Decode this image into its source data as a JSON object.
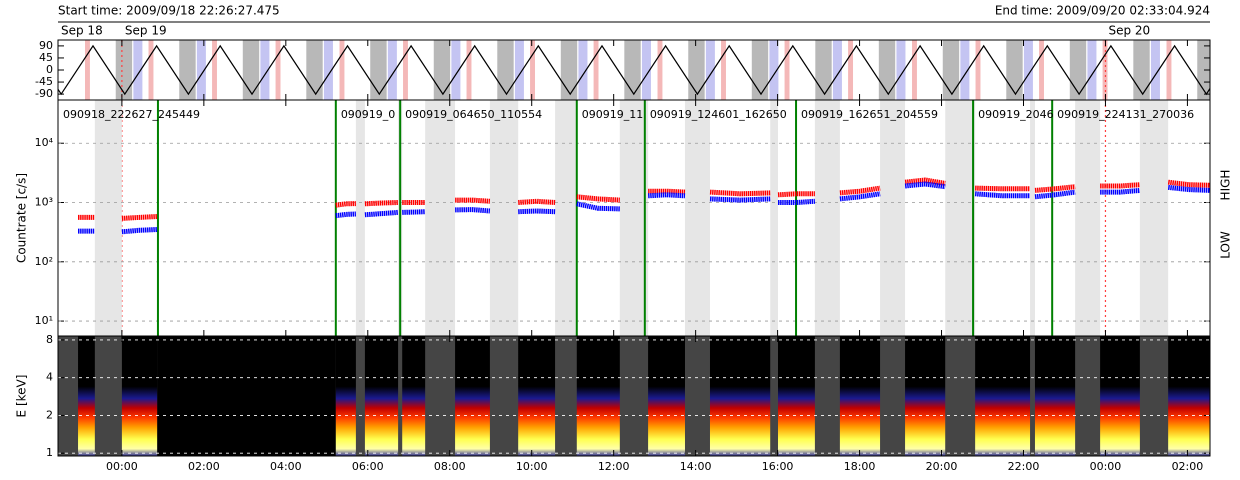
{
  "header": {
    "start": "Start time: 2009/09/18 22:26:27.475",
    "end": "End time: 2009/09/20 02:33:04.924"
  },
  "chart_data": [
    {
      "type": "line",
      "xlim": [
        22.441,
        50.551
      ],
      "ylim": [
        -112,
        112
      ],
      "yticks": [
        90,
        45,
        0,
        -45,
        -90
      ],
      "days": [
        {
          "value": 0,
          "label": "Sep 18"
        },
        {
          "value": 24,
          "label": "Sep 19"
        },
        {
          "value": 48,
          "label": "Sep 20"
        }
      ],
      "day_line_color": "#ff4040",
      "x": [
        22.441,
        22.519,
        23.295,
        24.071,
        24.847,
        25.623,
        26.4,
        27.176,
        27.952,
        28.728,
        29.505,
        30.281,
        31.057,
        31.833,
        32.609,
        33.386,
        34.162,
        34.938,
        35.714,
        36.49,
        37.267,
        38.043,
        38.819,
        39.595,
        40.371,
        41.148,
        41.924,
        42.7,
        43.476,
        44.252,
        45.029,
        45.805,
        46.581,
        47.357,
        48.133,
        48.91,
        49.686,
        50.462,
        50.551
      ],
      "series": [
        {
          "color": "#000000",
          "values": [
            -72,
            -90,
            90,
            -90,
            90,
            -90,
            90,
            -90,
            90,
            -90,
            90,
            -90,
            90,
            -90,
            90,
            -90,
            90,
            -90,
            90,
            -90,
            90,
            -90,
            90,
            -90,
            90,
            -90,
            90,
            -90,
            90,
            -90,
            90,
            -90,
            90,
            -90,
            90,
            -90,
            90,
            -90,
            -69
          ]
        }
      ],
      "bands": [
        {
          "color": "#f4b8b8",
          "ranges": [
            [
              23.1,
              23.22
            ],
            [
              24.65,
              24.77
            ],
            [
              26.2,
              26.32
            ],
            [
              27.75,
              27.87
            ],
            [
              29.31,
              29.43
            ],
            [
              30.86,
              30.98
            ],
            [
              32.41,
              32.53
            ],
            [
              33.96,
              34.08
            ],
            [
              35.51,
              35.63
            ],
            [
              37.07,
              37.19
            ],
            [
              38.62,
              38.74
            ],
            [
              40.17,
              40.29
            ],
            [
              41.72,
              41.84
            ],
            [
              43.28,
              43.4
            ],
            [
              44.83,
              44.95
            ],
            [
              46.38,
              46.5
            ],
            [
              47.93,
              48.05
            ],
            [
              49.49,
              49.61
            ]
          ]
        },
        {
          "color": "#b8b8b8",
          "ranges": [
            [
              23.85,
              24.25
            ],
            [
              25.4,
              25.8
            ],
            [
              26.95,
              27.35
            ],
            [
              28.5,
              28.9
            ],
            [
              30.06,
              30.46
            ],
            [
              31.61,
              32.01
            ],
            [
              33.16,
              33.56
            ],
            [
              34.71,
              35.11
            ],
            [
              36.26,
              36.66
            ],
            [
              37.82,
              38.22
            ],
            [
              39.37,
              39.77
            ],
            [
              40.92,
              41.32
            ],
            [
              42.47,
              42.87
            ],
            [
              44.03,
              44.43
            ],
            [
              45.58,
              45.98
            ],
            [
              47.13,
              47.53
            ],
            [
              48.68,
              49.08
            ],
            [
              50.24,
              50.55
            ]
          ]
        },
        {
          "color": "#c4c4f2",
          "ranges": [
            [
              24.28,
              24.5
            ],
            [
              25.83,
              26.05
            ],
            [
              27.38,
              27.6
            ],
            [
              28.93,
              29.15
            ],
            [
              30.49,
              30.71
            ],
            [
              32.04,
              32.26
            ],
            [
              33.59,
              33.81
            ],
            [
              35.14,
              35.36
            ],
            [
              36.69,
              36.91
            ],
            [
              38.25,
              38.47
            ],
            [
              39.8,
              40.02
            ],
            [
              41.35,
              41.57
            ],
            [
              42.9,
              43.12
            ],
            [
              44.46,
              44.68
            ],
            [
              46.01,
              46.23
            ],
            [
              47.56,
              47.78
            ],
            [
              49.11,
              49.33
            ]
          ]
        }
      ]
    },
    {
      "type": "line",
      "log_y": true,
      "grid": true,
      "ylabel": "Countrate [c/s]",
      "xlim": [
        22.441,
        50.551
      ],
      "ylim": [
        5.6,
        53600
      ],
      "yticks": [
        {
          "value": 10,
          "label": "10¹"
        },
        {
          "value": 100,
          "label": "10²"
        },
        {
          "value": 1000,
          "label": "10³"
        },
        {
          "value": 10000,
          "label": "10⁴"
        }
      ],
      "x": [
        22.93,
        23.14,
        23.34,
        23.67,
        24.0,
        24.43,
        24.86,
        27.0,
        29.22,
        29.47,
        29.71,
        29.82,
        29.93,
        30.34,
        30.74,
        30.79,
        30.84,
        31.12,
        31.4,
        31.76,
        32.13,
        32.56,
        32.98,
        33.32,
        33.67,
        34.12,
        34.57,
        34.83,
        35.1,
        35.62,
        36.15,
        36.5,
        36.84,
        37.29,
        37.74,
        38.04,
        38.35,
        39.09,
        39.82,
        39.92,
        40.01,
        40.46,
        40.91,
        41.22,
        41.52,
        42.01,
        42.5,
        42.8,
        43.11,
        43.6,
        44.09,
        44.46,
        44.82,
        45.49,
        46.16,
        46.22,
        46.28,
        46.77,
        47.26,
        47.56,
        47.87,
        48.36,
        48.84,
        49.18,
        49.53,
        50.04,
        50.55
      ],
      "series": [
        {
          "name": "LOW",
          "color": "#ff0000",
          "values": [
            560,
            560,
            560,
            null,
            540,
            560,
            580,
            null,
            900,
            950,
            960,
            null,
            950,
            980,
            1000,
            null,
            1000,
            1000,
            1000,
            null,
            1100,
            1100,
            1050,
            null,
            1000,
            1050,
            1000,
            null,
            1250,
            1150,
            1100,
            null,
            1550,
            1550,
            1500,
            null,
            1500,
            1400,
            1450,
            null,
            1350,
            1400,
            1400,
            null,
            1450,
            1550,
            1750,
            null,
            2200,
            2400,
            2100,
            null,
            1750,
            1700,
            1700,
            null,
            1600,
            1700,
            1850,
            null,
            1900,
            1900,
            2000,
            null,
            2200,
            2000,
            1950
          ]
        },
        {
          "name": "HIGH",
          "color": "#0000ff",
          "values": [
            330,
            330,
            330,
            null,
            320,
            340,
            350,
            null,
            600,
            630,
            640,
            null,
            620,
            650,
            680,
            null,
            680,
            690,
            700,
            null,
            750,
            760,
            720,
            null,
            700,
            720,
            700,
            null,
            950,
            800,
            780,
            null,
            1300,
            1350,
            1300,
            null,
            1150,
            1100,
            1150,
            null,
            1000,
            1000,
            1050,
            null,
            1150,
            1250,
            1400,
            null,
            1900,
            2050,
            1850,
            null,
            1400,
            1300,
            1300,
            null,
            1250,
            1350,
            1500,
            null,
            1500,
            1500,
            1600,
            null,
            1800,
            1650,
            1600
          ]
        }
      ],
      "markers": {
        "color": "#008000",
        "x": [
          24.88,
          29.22,
          30.79,
          35.1,
          36.76,
          40.45,
          44.77,
          46.7
        ]
      },
      "segment_labels": [
        "090918_222627_245449",
        "090919_0",
        "090919_064650_110554",
        "090919_11",
        "090919_124601_162650",
        "090919_162651_204559",
        "090919_2046",
        "090919_224131_270036"
      ]
    },
    {
      "type": "spectrogram",
      "log_y": true,
      "grid": true,
      "ylabel": "E [keV]",
      "xlim": [
        22.441,
        50.551
      ],
      "ylim": [
        0.95,
        8.6
      ],
      "yticks": [
        1,
        2,
        4,
        8
      ],
      "xticks": [
        {
          "value": 24,
          "label": "00:00"
        },
        {
          "value": 26,
          "label": "02:00"
        },
        {
          "value": 28,
          "label": "04:00"
        },
        {
          "value": 30,
          "label": "06:00"
        },
        {
          "value": 32,
          "label": "08:00"
        },
        {
          "value": 34,
          "label": "10:00"
        },
        {
          "value": 36,
          "label": "12:00"
        },
        {
          "value": 38,
          "label": "14:00"
        },
        {
          "value": 40,
          "label": "16:00"
        },
        {
          "value": 42,
          "label": "18:00"
        },
        {
          "value": 44,
          "label": "20:00"
        },
        {
          "value": 46,
          "label": "22:00"
        },
        {
          "value": 48,
          "label": "00:00"
        },
        {
          "value": 50,
          "label": "02:00"
        }
      ]
    }
  ]
}
